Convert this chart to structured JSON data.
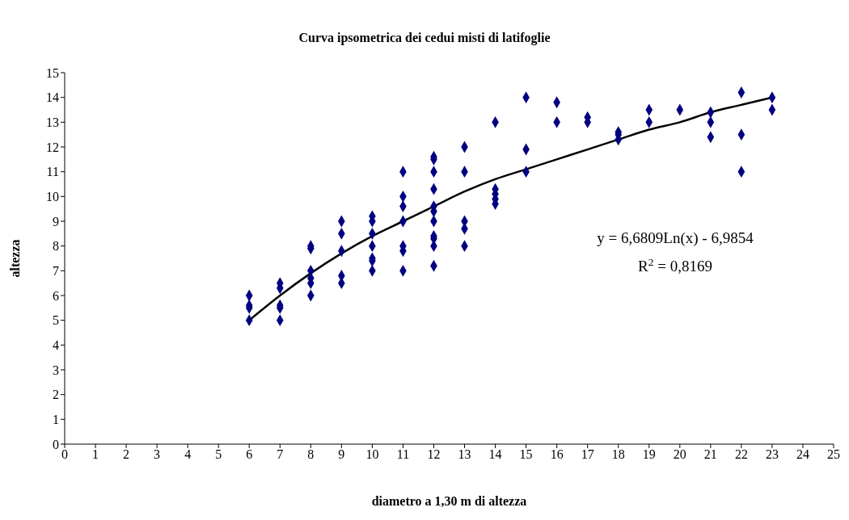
{
  "chart_data": {
    "type": "scatter",
    "title": "Curva ipsometrica dei cedui misti di latifoglie",
    "xlabel": "diametro a 1,30 m di altezza",
    "ylabel": "altezza",
    "xlim": [
      0,
      25
    ],
    "xticks": [
      0,
      1,
      2,
      3,
      4,
      5,
      6,
      7,
      8,
      9,
      10,
      11,
      12,
      13,
      14,
      15,
      16,
      17,
      18,
      19,
      20,
      21,
      22,
      23,
      24,
      25
    ],
    "ylim": [
      0,
      15
    ],
    "yticks": [
      0,
      1,
      2,
      3,
      4,
      5,
      6,
      7,
      8,
      9,
      10,
      11,
      12,
      13,
      14,
      15
    ],
    "annotations": [
      "y = 6,6809Ln(x) - 6,9854",
      "R$^{2}$ = 0,8169"
    ],
    "series": [
      {
        "marker": "diamond",
        "color": "#000080",
        "x": [
          6,
          6,
          6,
          6,
          7,
          7,
          7,
          7,
          7,
          8,
          8,
          8,
          8,
          8,
          8,
          9,
          9,
          9,
          9,
          9,
          10,
          10,
          10,
          10,
          10,
          10,
          10,
          11,
          11,
          11,
          11,
          11,
          11,
          11,
          12,
          12,
          12,
          12,
          12,
          12,
          12,
          12,
          12,
          12,
          12,
          13,
          13,
          13,
          13,
          13,
          14,
          14,
          14,
          14,
          14,
          15,
          15,
          15,
          16,
          16,
          17,
          17,
          18,
          18,
          18,
          19,
          19,
          20,
          21,
          21,
          21,
          22,
          22,
          22,
          23,
          23
        ],
        "values": [
          6,
          5.6,
          5.5,
          5,
          6.5,
          6.3,
          5.6,
          5.5,
          5,
          8,
          7.9,
          7,
          6.7,
          6.5,
          6,
          9,
          8.5,
          7.8,
          6.8,
          6.5,
          9.2,
          9,
          8.5,
          8,
          7.5,
          7.4,
          7,
          11,
          10,
          9.6,
          9,
          8,
          7.8,
          7,
          11.6,
          11.5,
          11,
          10.3,
          9.6,
          9.4,
          9,
          8.4,
          8.3,
          8,
          7.2,
          12,
          11,
          9,
          8.7,
          8,
          13,
          10.3,
          10.1,
          9.9,
          9.7,
          14,
          11.9,
          11,
          13.8,
          13,
          13.2,
          13,
          12.6,
          12.5,
          12.3,
          13.5,
          13,
          13.5,
          13.4,
          13,
          12.4,
          14.2,
          12.5,
          11,
          14,
          13.5
        ]
      },
      {
        "type": "line",
        "marker": "none",
        "color": "#000000",
        "line_style": "solid",
        "x": [
          6,
          7,
          8,
          9,
          10,
          11,
          12,
          13,
          14,
          15,
          16,
          17,
          18,
          19,
          20,
          21,
          22,
          23
        ],
        "values": [
          5.0,
          6.0,
          6.9,
          7.7,
          8.4,
          9.0,
          9.6,
          10.2,
          10.7,
          11.1,
          11.5,
          11.9,
          12.3,
          12.7,
          13.0,
          13.4,
          13.7,
          14.0
        ]
      }
    ]
  }
}
